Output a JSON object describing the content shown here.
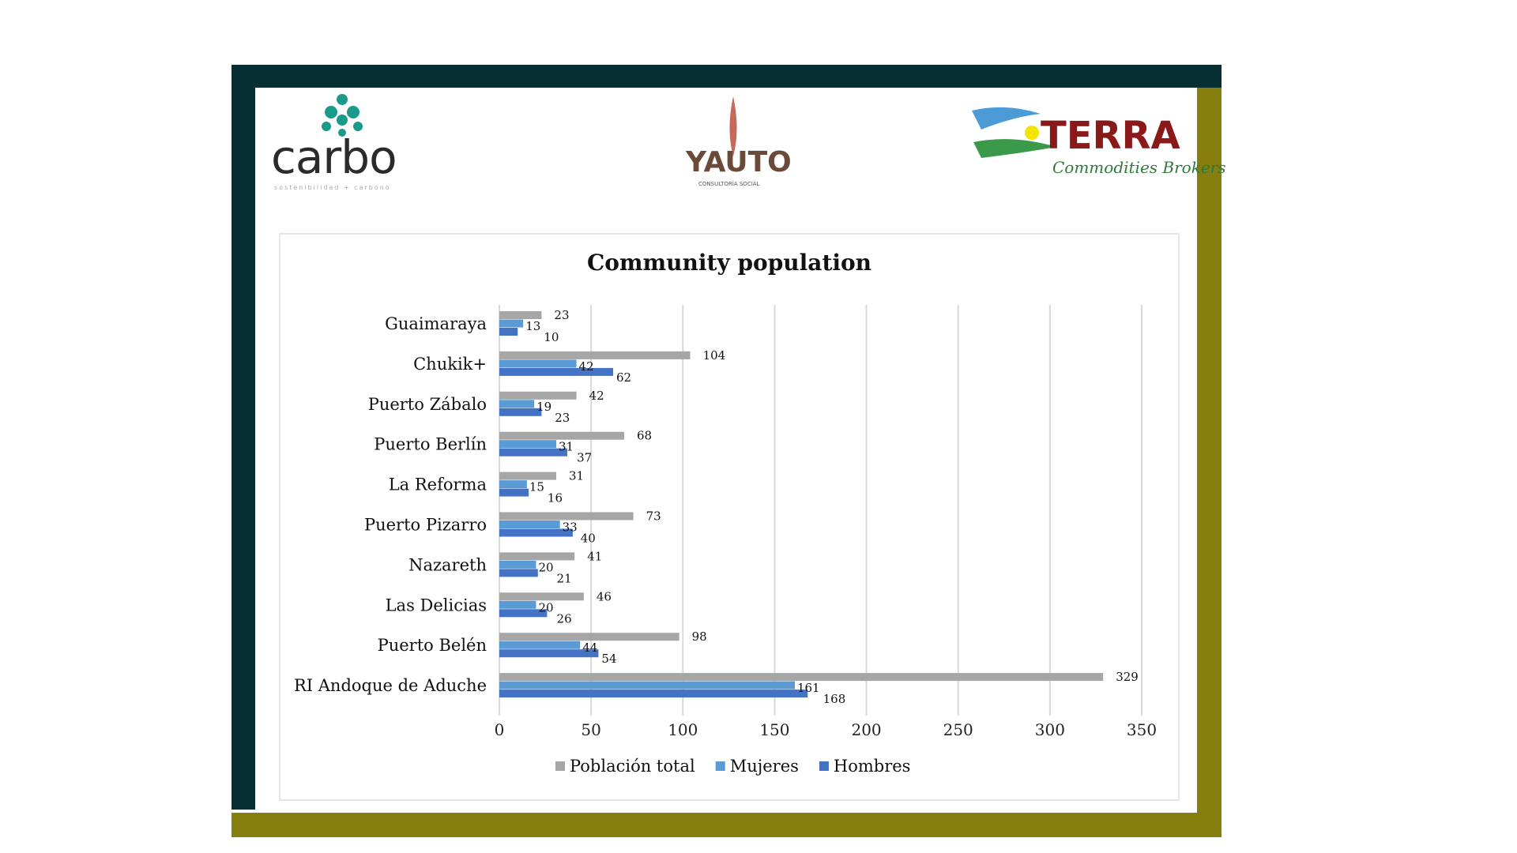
{
  "logos": {
    "left": "carbo",
    "left_tagline": "sostenibilidad + carbono",
    "center": "YAUTO",
    "center_tagline": "CONSULTORÍA SOCIAL",
    "right": "TERRA",
    "right_tagline": "Commodities Brokers"
  },
  "colors": {
    "frame_dark": "#062e33",
    "frame_olive": "#867f0d",
    "total": "#a6a6a6",
    "mujeres": "#5b9bd5",
    "hombres": "#4472c4"
  },
  "chart_data": {
    "type": "bar",
    "orientation": "horizontal",
    "title": "Community population",
    "categories": [
      "Guaimaraya",
      "Chukik+",
      "Puerto Zábalo",
      "Puerto Berlín",
      "La Reforma",
      "Puerto Pizarro",
      "Nazareth",
      "Las Delicias",
      "Puerto Belén",
      "RI Andoque de Aduche"
    ],
    "series": [
      {
        "name": "Población total",
        "values": [
          23,
          104,
          42,
          68,
          31,
          73,
          41,
          46,
          98,
          329
        ]
      },
      {
        "name": "Mujeres",
        "values": [
          13,
          42,
          19,
          31,
          15,
          33,
          20,
          20,
          44,
          161
        ]
      },
      {
        "name": "Hombres",
        "values": [
          10,
          62,
          23,
          37,
          16,
          40,
          21,
          26,
          54,
          168
        ]
      }
    ],
    "xlim": [
      0,
      350
    ],
    "xticks": [
      "0",
      "50",
      "100",
      "150",
      "200",
      "250",
      "300",
      "350"
    ],
    "grid": true,
    "legend_position": "bottom"
  }
}
